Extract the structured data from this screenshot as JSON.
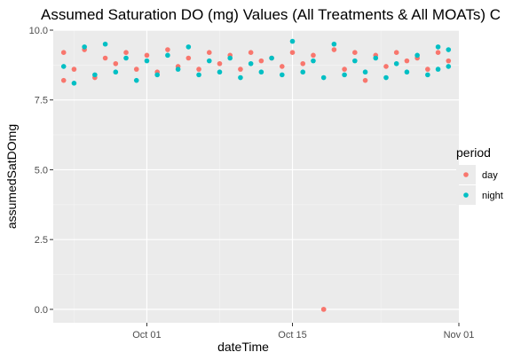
{
  "chart_data": {
    "type": "scatter",
    "title": "Assumed Saturation DO (mg) Values (All Treatments & All MOATs) C",
    "xlabel": "dateTime",
    "ylabel": "assumedSatDOmg",
    "x_axis_type": "date",
    "xlim": [
      "2019-09-22",
      "2019-10-31"
    ],
    "ylim": [
      -0.48,
      10.0
    ],
    "x_ticks": [
      {
        "date": "2019-10-01",
        "label": "Oct 01"
      },
      {
        "date": "2019-10-15",
        "label": "Oct 15"
      },
      {
        "date": "2019-11-01",
        "label": "Nov 01"
      }
    ],
    "y_ticks": [
      {
        "value": 0,
        "label": "0.0"
      },
      {
        "value": 2.5,
        "label": "2.5"
      },
      {
        "value": 5,
        "label": "5.0"
      },
      {
        "value": 7.5,
        "label": "7.5"
      },
      {
        "value": 10,
        "label": "10.0"
      }
    ],
    "grid": true,
    "panel_background": "#ebebeb",
    "legend": {
      "title": "period",
      "placement": "right",
      "entries": [
        {
          "label": "day",
          "color": "#f8766d"
        },
        {
          "label": "night",
          "color": "#00bfc4"
        }
      ]
    },
    "series": [
      {
        "name": "day",
        "color": "#f8766d",
        "points": [
          [
            "2019-09-23",
            8.2
          ],
          [
            "2019-09-23",
            9.2
          ],
          [
            "2019-09-24",
            8.6
          ],
          [
            "2019-09-25",
            9.3
          ],
          [
            "2019-09-26",
            8.3
          ],
          [
            "2019-09-27",
            9.0
          ],
          [
            "2019-09-28",
            8.8
          ],
          [
            "2019-09-29",
            9.2
          ],
          [
            "2019-09-30",
            8.6
          ],
          [
            "2019-10-01",
            9.1
          ],
          [
            "2019-10-02",
            8.5
          ],
          [
            "2019-10-03",
            9.3
          ],
          [
            "2019-10-04",
            8.7
          ],
          [
            "2019-10-05",
            9.0
          ],
          [
            "2019-10-06",
            8.6
          ],
          [
            "2019-10-07",
            9.2
          ],
          [
            "2019-10-08",
            8.8
          ],
          [
            "2019-10-09",
            9.1
          ],
          [
            "2019-10-10",
            8.6
          ],
          [
            "2019-10-11",
            9.2
          ],
          [
            "2019-10-12",
            8.9
          ],
          [
            "2019-10-13",
            9.0
          ],
          [
            "2019-10-14",
            8.7
          ],
          [
            "2019-10-15",
            9.2
          ],
          [
            "2019-10-16",
            8.8
          ],
          [
            "2019-10-17",
            9.1
          ],
          [
            "2019-10-18",
            0.0
          ],
          [
            "2019-10-18",
            0.0
          ],
          [
            "2019-10-19",
            9.3
          ],
          [
            "2019-10-20",
            8.6
          ],
          [
            "2019-10-21",
            9.2
          ],
          [
            "2019-10-22",
            8.2
          ],
          [
            "2019-10-23",
            9.1
          ],
          [
            "2019-10-24",
            8.7
          ],
          [
            "2019-10-25",
            9.2
          ],
          [
            "2019-10-26",
            8.9
          ],
          [
            "2019-10-27",
            9.0
          ],
          [
            "2019-10-28",
            8.6
          ],
          [
            "2019-10-29",
            9.2
          ],
          [
            "2019-10-30",
            8.9
          ]
        ]
      },
      {
        "name": "night",
        "color": "#00bfc4",
        "points": [
          [
            "2019-09-23",
            8.7
          ],
          [
            "2019-09-24",
            8.1
          ],
          [
            "2019-09-25",
            9.4
          ],
          [
            "2019-09-26",
            8.4
          ],
          [
            "2019-09-27",
            9.5
          ],
          [
            "2019-09-28",
            8.5
          ],
          [
            "2019-09-29",
            9.0
          ],
          [
            "2019-09-30",
            8.2
          ],
          [
            "2019-10-01",
            8.9
          ],
          [
            "2019-10-02",
            8.4
          ],
          [
            "2019-10-03",
            9.1
          ],
          [
            "2019-10-04",
            8.6
          ],
          [
            "2019-10-05",
            9.4
          ],
          [
            "2019-10-06",
            8.4
          ],
          [
            "2019-10-07",
            8.9
          ],
          [
            "2019-10-08",
            8.5
          ],
          [
            "2019-10-09",
            9.0
          ],
          [
            "2019-10-10",
            8.3
          ],
          [
            "2019-10-11",
            8.8
          ],
          [
            "2019-10-12",
            8.5
          ],
          [
            "2019-10-13",
            9.0
          ],
          [
            "2019-10-14",
            8.4
          ],
          [
            "2019-10-15",
            9.6
          ],
          [
            "2019-10-16",
            8.5
          ],
          [
            "2019-10-17",
            8.9
          ],
          [
            "2019-10-18",
            8.3
          ],
          [
            "2019-10-19",
            9.5
          ],
          [
            "2019-10-20",
            8.4
          ],
          [
            "2019-10-21",
            8.9
          ],
          [
            "2019-10-22",
            8.5
          ],
          [
            "2019-10-23",
            9.0
          ],
          [
            "2019-10-24",
            8.3
          ],
          [
            "2019-10-25",
            8.8
          ],
          [
            "2019-10-26",
            8.5
          ],
          [
            "2019-10-27",
            9.1
          ],
          [
            "2019-10-28",
            8.4
          ],
          [
            "2019-10-29",
            9.4
          ],
          [
            "2019-10-30",
            8.7
          ],
          [
            "2019-10-30",
            9.3
          ],
          [
            "2019-10-29",
            8.6
          ]
        ]
      }
    ]
  }
}
